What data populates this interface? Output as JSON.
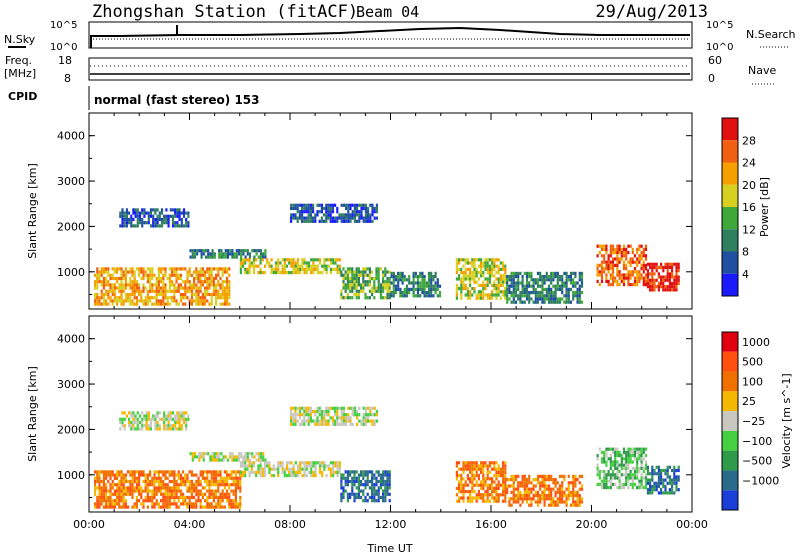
{
  "header": {
    "station": "Zhongshan Station (fitACF)",
    "beam": "Beam 04",
    "date": "29/Aug/2013"
  },
  "top_panels": {
    "nsky_label": "N.Sky",
    "nsearch_label": "N.Search",
    "ticks_left": [
      "10^5",
      "10^0"
    ],
    "ticks_right": [
      "10^5",
      "10^0"
    ],
    "freq_label": "Freq.",
    "freq_unit": "[MHz]",
    "freq_ticks": [
      "18",
      "8"
    ],
    "nave_label": "Nave",
    "nave_ticks": [
      "60",
      "0"
    ],
    "cpid_label": "CPID",
    "cpid_text": "normal (fast stereo) 153"
  },
  "chart_data": [
    {
      "type": "heatmap",
      "name": "power",
      "ylabel": "Slant Range [km]",
      "ylim": [
        180,
        4500
      ],
      "yticks": [
        "1000",
        "2000",
        "3000",
        "4000"
      ],
      "xlim_hours": [
        0,
        24
      ],
      "colorbar_label": "Power [dB]",
      "colorbar_ticks": [
        "4",
        "8",
        "12",
        "16",
        "20",
        "24",
        "28"
      ],
      "colors": [
        "#1a1aff",
        "#1f4fa0",
        "#2f7f5f",
        "#3ea83a",
        "#d8d020",
        "#f5a000",
        "#f06010",
        "#e01010"
      ],
      "regions": [
        {
          "t": [
            0.2,
            5.6
          ],
          "r": [
            300,
            1100
          ],
          "level": 5
        },
        {
          "t": [
            1.2,
            4.0
          ],
          "r": [
            2000,
            2400
          ],
          "level": 1
        },
        {
          "t": [
            4.0,
            7.0
          ],
          "r": [
            1300,
            1500
          ],
          "level": 2
        },
        {
          "t": [
            6.0,
            10.0
          ],
          "r": [
            1000,
            1300
          ],
          "level": 4
        },
        {
          "t": [
            8.0,
            11.5
          ],
          "r": [
            2100,
            2500
          ],
          "level": 1
        },
        {
          "t": [
            10.0,
            12.0
          ],
          "r": [
            400,
            1100
          ],
          "level": 3
        },
        {
          "t": [
            12.0,
            14.0
          ],
          "r": [
            500,
            1000
          ],
          "level": 2
        },
        {
          "t": [
            14.6,
            16.6
          ],
          "r": [
            400,
            1300
          ],
          "level": 4
        },
        {
          "t": [
            16.6,
            19.6
          ],
          "r": [
            300,
            1000
          ],
          "level": 2
        },
        {
          "t": [
            20.2,
            22.2
          ],
          "r": [
            700,
            1600
          ],
          "level": 6
        },
        {
          "t": [
            22.2,
            23.5
          ],
          "r": [
            600,
            1200
          ],
          "level": 7
        }
      ]
    },
    {
      "type": "heatmap",
      "name": "velocity",
      "ylabel": "Slant Range [km]",
      "ylim": [
        180,
        4500
      ],
      "yticks": [
        "1000",
        "2000",
        "3000",
        "4000"
      ],
      "xlim_hours": [
        0,
        24
      ],
      "xticks": [
        "00:00",
        "04:00",
        "08:00",
        "12:00",
        "16:00",
        "20:00",
        "00:00"
      ],
      "xlabel": "Time UT",
      "colorbar_label": "Velocity [m s^-1]",
      "colorbar_ticks": [
        "1000",
        "500",
        "100",
        "25",
        "−25",
        "−100",
        "−500",
        "−1000"
      ],
      "colors": [
        "#1a3fd8",
        "#2a6a8a",
        "#2f9a4a",
        "#44d040",
        "#c8c8c0",
        "#f5b800",
        "#f07000",
        "#ff5010",
        "#e00010"
      ],
      "regions": [
        {
          "t": [
            0.2,
            6.0
          ],
          "r": [
            300,
            1100
          ],
          "level": 6
        },
        {
          "t": [
            1.2,
            4.0
          ],
          "r": [
            2000,
            2400
          ],
          "level": 4
        },
        {
          "t": [
            4.0,
            7.0
          ],
          "r": [
            1300,
            1500
          ],
          "level": 4
        },
        {
          "t": [
            6.0,
            10.0
          ],
          "r": [
            1000,
            1300
          ],
          "level": 4
        },
        {
          "t": [
            8.0,
            11.5
          ],
          "r": [
            2100,
            2500
          ],
          "level": 4
        },
        {
          "t": [
            10.0,
            12.0
          ],
          "r": [
            400,
            1100
          ],
          "level": 1
        },
        {
          "t": [
            14.6,
            16.6
          ],
          "r": [
            400,
            1300
          ],
          "level": 6
        },
        {
          "t": [
            16.6,
            19.6
          ],
          "r": [
            300,
            1000
          ],
          "level": 6
        },
        {
          "t": [
            20.2,
            22.2
          ],
          "r": [
            700,
            1600
          ],
          "level": 3
        },
        {
          "t": [
            22.2,
            23.5
          ],
          "r": [
            600,
            1200
          ],
          "level": 1
        }
      ]
    }
  ]
}
